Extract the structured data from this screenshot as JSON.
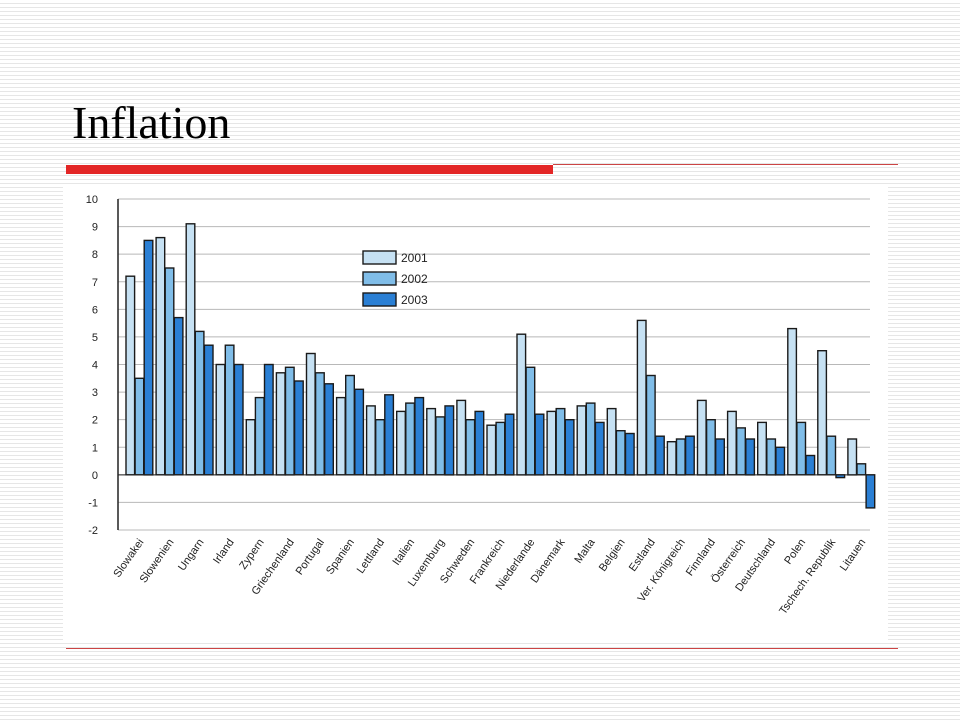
{
  "slide": {
    "title": "Inflation"
  },
  "chart_data": {
    "type": "bar",
    "title": "",
    "xlabel": "",
    "ylabel": "",
    "ylim": [
      -2,
      10
    ],
    "yticks": [
      -2,
      -1,
      0,
      1,
      2,
      3,
      4,
      5,
      6,
      7,
      8,
      9,
      10
    ],
    "grid": true,
    "legend_position": "top-center",
    "categories": [
      "Slowakei",
      "Slowenien",
      "Ungarn",
      "Irland",
      "Zypern",
      "Griechenland",
      "Portugal",
      "Spanien",
      "Lettland",
      "Italien",
      "Luxemburg",
      "Schweden",
      "Frankreich",
      "Niederlande",
      "Dänemark",
      "Malta",
      "Belgien",
      "Estland",
      "Ver. Königreich",
      "Finnland",
      "Österreich",
      "Deutschland",
      "Polen",
      "Tschech. Republik",
      "Litauen"
    ],
    "series": [
      {
        "name": "2001",
        "color": "#c6e1f3",
        "values": [
          7.2,
          8.6,
          9.1,
          4.0,
          2.0,
          3.7,
          4.4,
          2.8,
          2.5,
          2.3,
          2.4,
          2.7,
          1.8,
          5.1,
          2.3,
          2.5,
          2.4,
          5.6,
          1.2,
          2.7,
          2.3,
          1.9,
          5.3,
          4.5,
          1.3
        ]
      },
      {
        "name": "2002",
        "color": "#80bde8",
        "values": [
          3.5,
          7.5,
          5.2,
          4.7,
          2.8,
          3.9,
          3.7,
          3.6,
          2.0,
          2.6,
          2.1,
          2.0,
          1.9,
          3.9,
          2.4,
          2.6,
          1.6,
          3.6,
          1.3,
          2.0,
          1.7,
          1.3,
          1.9,
          1.4,
          0.4
        ]
      },
      {
        "name": "2003",
        "color": "#2a7fd4",
        "values": [
          8.5,
          5.7,
          4.7,
          4.0,
          4.0,
          3.4,
          3.3,
          3.1,
          2.9,
          2.8,
          2.5,
          2.3,
          2.2,
          2.2,
          2.0,
          1.9,
          1.5,
          1.4,
          1.4,
          1.3,
          1.3,
          1.0,
          0.7,
          -0.1,
          -1.2
        ]
      }
    ]
  }
}
